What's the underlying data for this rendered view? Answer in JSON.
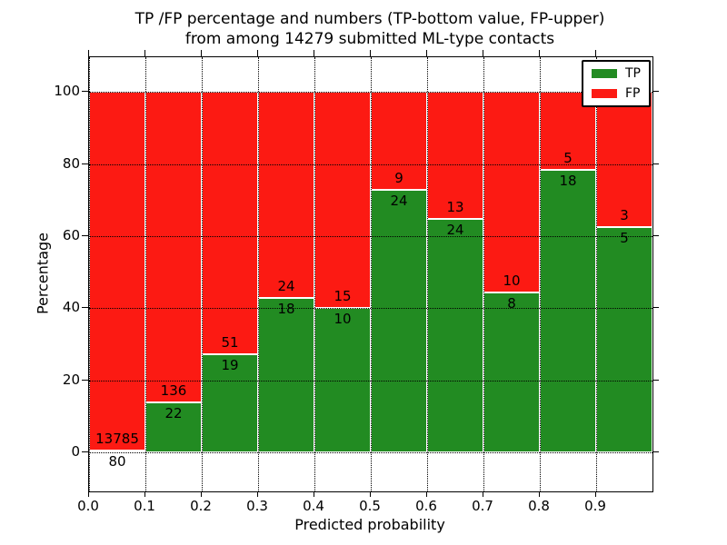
{
  "title": {
    "line1": "TP /FP percentage and numbers (TP-bottom value, FP-upper)",
    "line2": "from among 14279 submitted ML-type contacts"
  },
  "axes": {
    "xlabel": "Predicted probability",
    "ylabel": "Percentage",
    "x_ticks": [
      "0.0",
      "0.1",
      "0.2",
      "0.3",
      "0.4",
      "0.5",
      "0.6",
      "0.7",
      "0.8",
      "0.9"
    ],
    "y_ticks": [
      0,
      20,
      40,
      60,
      80,
      100
    ]
  },
  "legend": {
    "items": [
      {
        "label": "TP",
        "color": "#228b22"
      },
      {
        "label": "FP",
        "color": "#fc1a13"
      }
    ]
  },
  "chart_data": {
    "type": "bar",
    "stacked": true,
    "title": "TP /FP percentage and numbers (TP-bottom value, FP-upper) from among 14279 submitted ML-type contacts",
    "xlabel": "Predicted probability",
    "ylabel": "Percentage",
    "xlim": [
      0,
      1
    ],
    "ylim": [
      -10.8,
      109.6
    ],
    "bin_width": 0.1,
    "total_contacts": 14279,
    "grid": "dotted, both axes, drawn above bars",
    "legend_position": "upper right",
    "colors": {
      "tp": "#228b22",
      "fp": "#fc1a13",
      "bar_edge": "#ffffff",
      "grid": "#000000"
    },
    "bins": [
      {
        "x": 0.0,
        "tp": 80,
        "fp": 13785,
        "tp_pct": 0.58
      },
      {
        "x": 0.1,
        "tp": 22,
        "fp": 136,
        "tp_pct": 13.92
      },
      {
        "x": 0.2,
        "tp": 19,
        "fp": 51,
        "tp_pct": 27.14
      },
      {
        "x": 0.3,
        "tp": 18,
        "fp": 24,
        "tp_pct": 42.86
      },
      {
        "x": 0.4,
        "tp": 10,
        "fp": 15,
        "tp_pct": 40.0
      },
      {
        "x": 0.5,
        "tp": 24,
        "fp": 9,
        "tp_pct": 72.73
      },
      {
        "x": 0.6,
        "tp": 24,
        "fp": 13,
        "tp_pct": 64.86
      },
      {
        "x": 0.7,
        "tp": 8,
        "fp": 10,
        "tp_pct": 44.44
      },
      {
        "x": 0.8,
        "tp": 18,
        "fp": 5,
        "tp_pct": 78.26
      },
      {
        "x": 0.9,
        "tp": 5,
        "fp": 3,
        "tp_pct": 62.5
      }
    ]
  }
}
